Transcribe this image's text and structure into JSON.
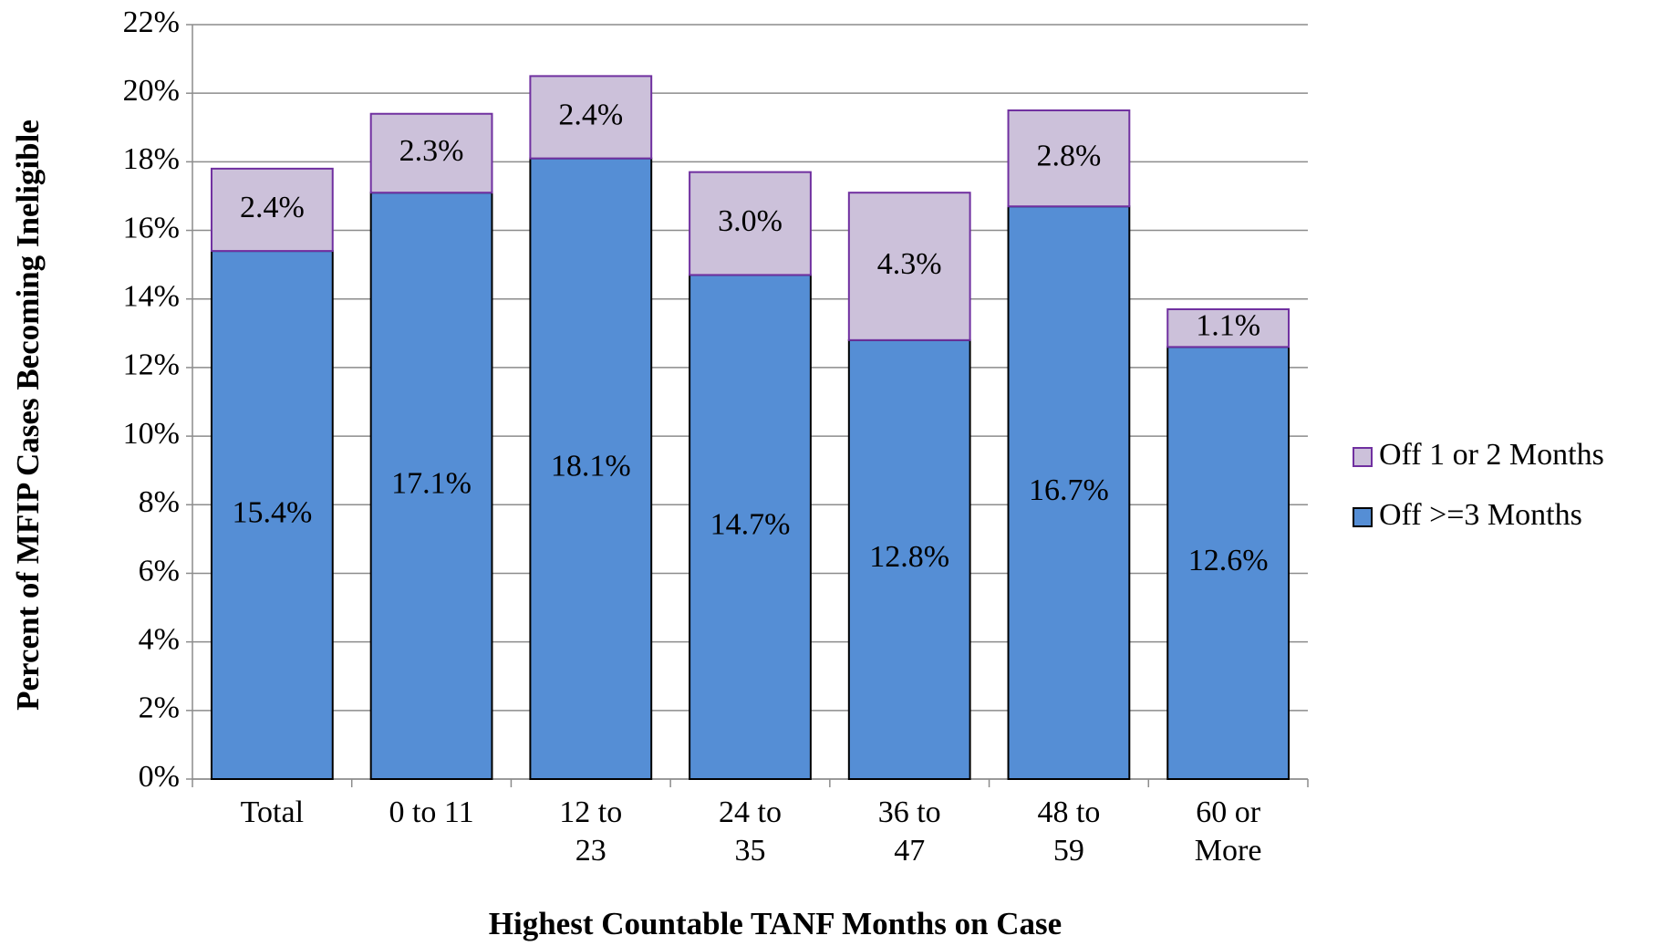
{
  "chart_data": {
    "type": "stacked_bar",
    "x_label": "Highest Countable TANF Months on Case",
    "y_label": "Percent of MFIP Cases Becoming Ineligible",
    "categories": [
      "Total",
      "0 to 11",
      "12 to 23",
      "24 to 35",
      "36 to 47",
      "48 to 59",
      "60 or More"
    ],
    "series": [
      {
        "name": "Off >=3 Months",
        "color": "#558ed5",
        "edge": "#000000",
        "values": [
          15.4,
          17.1,
          18.1,
          14.7,
          12.8,
          16.7,
          12.6
        ],
        "value_labels": [
          "15.4%",
          "17.1%",
          "18.1%",
          "14.7%",
          "12.8%",
          "16.7%",
          "12.6%"
        ]
      },
      {
        "name": "Off 1 or 2 Months",
        "color": "#ccc1da",
        "edge": "#7030a0",
        "values": [
          2.4,
          2.3,
          2.4,
          3.0,
          4.3,
          2.8,
          1.1
        ],
        "value_labels": [
          "2.4%",
          "2.3%",
          "2.4%",
          "3.0%",
          "4.3%",
          "2.8%",
          "1.1%"
        ]
      }
    ],
    "ylim": [
      0,
      22
    ],
    "yticks": [
      {
        "value": 0,
        "label": "0%"
      },
      {
        "value": 2,
        "label": "2%"
      },
      {
        "value": 4,
        "label": "4%"
      },
      {
        "value": 6,
        "label": "6%"
      },
      {
        "value": 8,
        "label": "8%"
      },
      {
        "value": 10,
        "label": "10%"
      },
      {
        "value": 12,
        "label": "12%"
      },
      {
        "value": 14,
        "label": "14%"
      },
      {
        "value": 16,
        "label": "16%"
      },
      {
        "value": 18,
        "label": "18%"
      },
      {
        "value": 20,
        "label": "20%"
      },
      {
        "value": 22,
        "label": "22%"
      }
    ],
    "grid": true,
    "legend": "right"
  }
}
